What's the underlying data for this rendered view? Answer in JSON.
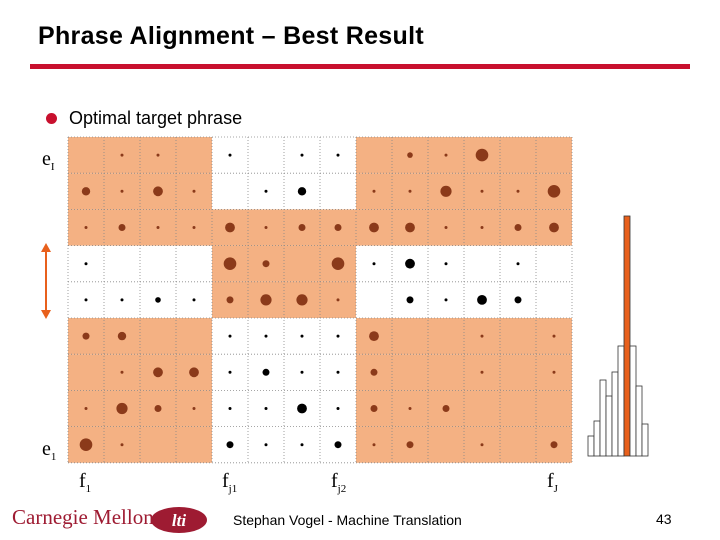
{
  "slide": {
    "title": "Phrase Alignment – Best Result",
    "bullet": "Optimal target phrase",
    "footer": "Stephan Vogel - Machine Translation",
    "page_number": "43",
    "logo_text": "Carnegie Mellon",
    "lti_text": "lti"
  },
  "axis": {
    "y_top": {
      "base": "e",
      "sub": "I"
    },
    "y_bottom": {
      "base": "e",
      "sub": "1"
    },
    "x_labels": [
      {
        "base": "f",
        "sub": "1"
      },
      {
        "base": "f",
        "sub": "j1"
      },
      {
        "base": "f",
        "sub": "j2"
      },
      {
        "base": "f",
        "sub": "J"
      }
    ]
  },
  "colors": {
    "highlight": "#f4b183",
    "dot_brown": "#8b3a1a",
    "dot_black": "#000000",
    "rule_red": "#c8102e",
    "bar_highlight": "#e8601c",
    "arrow": "#e8601c"
  },
  "grid": {
    "rows": 9,
    "cols": 14,
    "highlight": [
      [
        1,
        1,
        1,
        1,
        0,
        0,
        0,
        0,
        1,
        1,
        1,
        1,
        1,
        1
      ],
      [
        1,
        1,
        1,
        1,
        0,
        0,
        0,
        0,
        1,
        1,
        1,
        1,
        1,
        1
      ],
      [
        1,
        1,
        1,
        1,
        1,
        1,
        1,
        1,
        1,
        1,
        1,
        1,
        1,
        1
      ],
      [
        0,
        0,
        0,
        0,
        1,
        1,
        1,
        1,
        0,
        0,
        0,
        0,
        0,
        0
      ],
      [
        0,
        0,
        0,
        0,
        1,
        1,
        1,
        1,
        0,
        0,
        0,
        0,
        0,
        0
      ],
      [
        1,
        1,
        1,
        1,
        0,
        0,
        0,
        0,
        1,
        1,
        1,
        1,
        1,
        1
      ],
      [
        1,
        1,
        1,
        1,
        0,
        0,
        0,
        0,
        1,
        1,
        1,
        1,
        1,
        1
      ],
      [
        1,
        1,
        1,
        1,
        0,
        0,
        0,
        0,
        1,
        1,
        1,
        1,
        1,
        1
      ],
      [
        1,
        1,
        1,
        1,
        0,
        0,
        0,
        0,
        1,
        1,
        1,
        1,
        1,
        1
      ]
    ],
    "dots": [
      [
        0,
        0,
        0,
        1,
        0,
        1,
        0,
        2,
        0,
        4,
        0,
        1,
        0,
        7,
        0,
        1,
        0,
        4,
        0,
        6,
        0,
        1,
        0,
        9
      ],
      [
        1,
        0,
        6,
        1,
        0,
        2,
        1,
        0,
        7,
        1,
        0,
        2,
        0,
        0,
        0,
        2,
        0,
        6,
        1,
        0,
        2,
        1,
        0,
        2,
        1,
        0,
        8,
        1,
        0,
        2,
        1,
        0,
        2,
        1,
        0,
        9
      ],
      [
        2,
        0,
        2,
        2,
        0,
        5,
        2,
        0,
        2,
        2,
        0,
        2,
        2,
        0,
        7,
        2,
        0,
        2,
        2,
        0,
        5,
        2,
        0,
        5,
        2,
        0,
        7,
        2,
        0,
        7,
        2,
        0,
        2,
        2,
        0,
        2,
        2,
        0,
        5,
        2,
        0,
        7,
        2,
        0,
        2
      ],
      [
        3,
        0,
        2,
        3,
        0,
        9,
        3,
        0,
        5,
        3,
        0,
        9,
        3,
        0,
        2,
        3,
        0,
        7,
        3,
        0,
        2,
        3,
        0,
        2
      ],
      [
        4,
        0,
        2,
        4,
        0,
        2,
        4,
        0,
        4,
        4,
        0,
        2,
        4,
        0,
        5,
        4,
        0,
        8,
        4,
        0,
        8,
        4,
        0,
        2,
        4,
        0,
        5,
        4,
        0,
        2,
        4,
        0,
        7,
        4,
        0,
        5
      ],
      [
        5,
        0,
        5,
        5,
        0,
        6,
        5,
        0,
        2,
        5,
        0,
        2,
        5,
        0,
        2,
        5,
        0,
        2,
        5,
        0,
        7,
        5,
        0,
        2,
        5,
        0,
        2
      ],
      [
        6,
        0,
        2,
        6,
        0,
        7,
        6,
        0,
        7,
        6,
        0,
        2,
        6,
        0,
        5,
        6,
        0,
        2,
        6,
        0,
        2,
        6,
        0,
        5,
        6,
        0,
        2,
        6,
        0,
        2
      ],
      [
        7,
        0,
        2,
        7,
        0,
        8,
        7,
        0,
        5,
        7,
        0,
        2,
        7,
        0,
        2,
        7,
        0,
        2,
        7,
        0,
        7,
        7,
        0,
        2,
        7,
        0,
        5,
        7,
        0,
        2,
        7,
        0,
        5
      ],
      [
        8,
        0,
        9,
        8,
        0,
        2,
        8,
        0,
        5,
        8,
        0,
        2,
        8,
        0,
        2,
        8,
        0,
        5,
        8,
        0,
        2,
        8,
        0,
        5,
        8,
        0,
        2,
        8,
        0,
        5
      ]
    ]
  }
}
